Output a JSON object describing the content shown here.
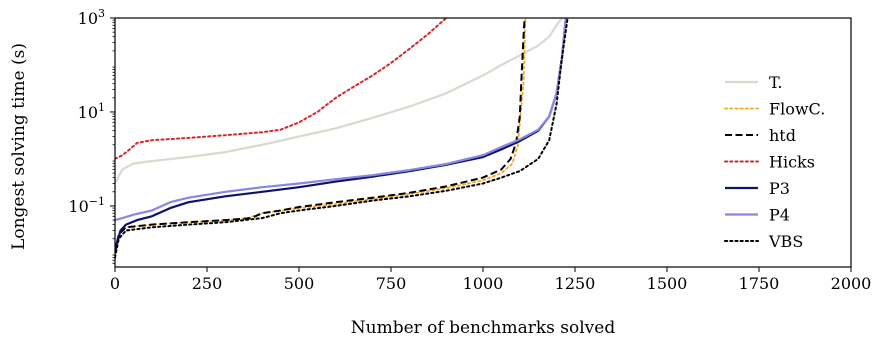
{
  "chart_data": {
    "type": "line",
    "xlabel": "Number of benchmarks solved",
    "ylabel": "Longest solving time (s)",
    "xlim": [
      0,
      2000
    ],
    "ylim_exponent": [
      -2.3,
      3
    ],
    "yscale": "log",
    "x_ticks": [
      0,
      250,
      500,
      750,
      1000,
      1250,
      1500,
      1750,
      2000
    ],
    "y_ticks": [
      {
        "exp": -1,
        "label_base": "10",
        "label_exp": "−1"
      },
      {
        "exp": 1,
        "label_base": "10",
        "label_exp": "1"
      },
      {
        "exp": 3,
        "label_base": "10",
        "label_exp": "3"
      }
    ],
    "legend_position": "right",
    "series": [
      {
        "name": "T.",
        "color": "#d9d9cc",
        "dash": "solid",
        "width": 2.2,
        "points": [
          [
            0,
            0.3
          ],
          [
            20,
            0.6
          ],
          [
            50,
            0.8
          ],
          [
            100,
            0.9
          ],
          [
            200,
            1.1
          ],
          [
            300,
            1.4
          ],
          [
            400,
            2.0
          ],
          [
            500,
            3.0
          ],
          [
            600,
            4.5
          ],
          [
            700,
            7.5
          ],
          [
            800,
            13
          ],
          [
            900,
            25
          ],
          [
            1000,
            60
          ],
          [
            1050,
            100
          ],
          [
            1100,
            160
          ],
          [
            1150,
            260
          ],
          [
            1180,
            400
          ],
          [
            1200,
            700
          ],
          [
            1215,
            1000
          ]
        ]
      },
      {
        "name": "FlowC.",
        "color": "#f5a623",
        "dash": "dot",
        "width": 1.8,
        "points": [
          [
            0,
            0.01
          ],
          [
            10,
            0.025
          ],
          [
            30,
            0.035
          ],
          [
            100,
            0.04
          ],
          [
            200,
            0.045
          ],
          [
            300,
            0.05
          ],
          [
            360,
            0.055
          ],
          [
            400,
            0.07
          ],
          [
            500,
            0.09
          ],
          [
            600,
            0.11
          ],
          [
            700,
            0.14
          ],
          [
            800,
            0.18
          ],
          [
            900,
            0.24
          ],
          [
            1000,
            0.35
          ],
          [
            1050,
            0.5
          ],
          [
            1080,
            0.8
          ],
          [
            1095,
            2.0
          ],
          [
            1100,
            6
          ],
          [
            1110,
            40
          ],
          [
            1115,
            1000
          ]
        ]
      },
      {
        "name": "htd",
        "color": "#000000",
        "dash": "dash",
        "width": 2.0,
        "points": [
          [
            0,
            0.01
          ],
          [
            10,
            0.025
          ],
          [
            30,
            0.035
          ],
          [
            100,
            0.04
          ],
          [
            200,
            0.045
          ],
          [
            300,
            0.05
          ],
          [
            370,
            0.055
          ],
          [
            400,
            0.07
          ],
          [
            450,
            0.08
          ],
          [
            500,
            0.095
          ],
          [
            600,
            0.12
          ],
          [
            700,
            0.15
          ],
          [
            800,
            0.19
          ],
          [
            900,
            0.26
          ],
          [
            1000,
            0.4
          ],
          [
            1050,
            0.6
          ],
          [
            1075,
            1.0
          ],
          [
            1090,
            2.2
          ],
          [
            1100,
            8
          ],
          [
            1105,
            60
          ],
          [
            1110,
            400
          ],
          [
            1113,
            1000
          ]
        ]
      },
      {
        "name": "Hicks",
        "color": "#d62728",
        "dash": "dot",
        "width": 2.0,
        "points": [
          [
            0,
            1.0
          ],
          [
            20,
            1.2
          ],
          [
            40,
            1.6
          ],
          [
            60,
            2.2
          ],
          [
            100,
            2.5
          ],
          [
            200,
            2.8
          ],
          [
            300,
            3.2
          ],
          [
            400,
            3.7
          ],
          [
            450,
            4.2
          ],
          [
            500,
            6
          ],
          [
            550,
            10
          ],
          [
            600,
            20
          ],
          [
            650,
            35
          ],
          [
            700,
            60
          ],
          [
            750,
            110
          ],
          [
            800,
            220
          ],
          [
            850,
            450
          ],
          [
            900,
            1000
          ]
        ]
      },
      {
        "name": "P3",
        "color": "#0d1366",
        "dash": "solid",
        "width": 2.2,
        "points": [
          [
            0,
            0.012
          ],
          [
            15,
            0.03
          ],
          [
            30,
            0.04
          ],
          [
            60,
            0.05
          ],
          [
            100,
            0.06
          ],
          [
            150,
            0.09
          ],
          [
            200,
            0.12
          ],
          [
            300,
            0.16
          ],
          [
            400,
            0.2
          ],
          [
            500,
            0.25
          ],
          [
            600,
            0.33
          ],
          [
            700,
            0.42
          ],
          [
            800,
            0.55
          ],
          [
            900,
            0.75
          ],
          [
            1000,
            1.1
          ],
          [
            1050,
            1.6
          ],
          [
            1100,
            2.4
          ],
          [
            1150,
            4
          ],
          [
            1180,
            8
          ],
          [
            1200,
            25
          ],
          [
            1215,
            150
          ],
          [
            1225,
            1000
          ]
        ]
      },
      {
        "name": "P4",
        "color": "#8a86e6",
        "dash": "solid",
        "width": 2.2,
        "points": [
          [
            0,
            0.05
          ],
          [
            20,
            0.055
          ],
          [
            50,
            0.065
          ],
          [
            100,
            0.08
          ],
          [
            150,
            0.12
          ],
          [
            200,
            0.15
          ],
          [
            300,
            0.2
          ],
          [
            400,
            0.25
          ],
          [
            500,
            0.3
          ],
          [
            600,
            0.37
          ],
          [
            700,
            0.45
          ],
          [
            800,
            0.58
          ],
          [
            900,
            0.78
          ],
          [
            1000,
            1.2
          ],
          [
            1050,
            1.8
          ],
          [
            1100,
            2.6
          ],
          [
            1150,
            4.2
          ],
          [
            1180,
            8
          ],
          [
            1200,
            25
          ],
          [
            1215,
            150
          ],
          [
            1225,
            1000
          ]
        ]
      },
      {
        "name": "VBS",
        "color": "#000000",
        "dash": "dot",
        "width": 2.0,
        "points": [
          [
            0,
            0.008
          ],
          [
            10,
            0.02
          ],
          [
            30,
            0.03
          ],
          [
            100,
            0.035
          ],
          [
            200,
            0.04
          ],
          [
            300,
            0.045
          ],
          [
            400,
            0.055
          ],
          [
            450,
            0.07
          ],
          [
            500,
            0.08
          ],
          [
            600,
            0.1
          ],
          [
            700,
            0.13
          ],
          [
            800,
            0.16
          ],
          [
            900,
            0.21
          ],
          [
            1000,
            0.3
          ],
          [
            1050,
            0.4
          ],
          [
            1100,
            0.55
          ],
          [
            1150,
            1.0
          ],
          [
            1180,
            2.5
          ],
          [
            1200,
            15
          ],
          [
            1215,
            150
          ],
          [
            1230,
            1000
          ]
        ]
      }
    ]
  }
}
